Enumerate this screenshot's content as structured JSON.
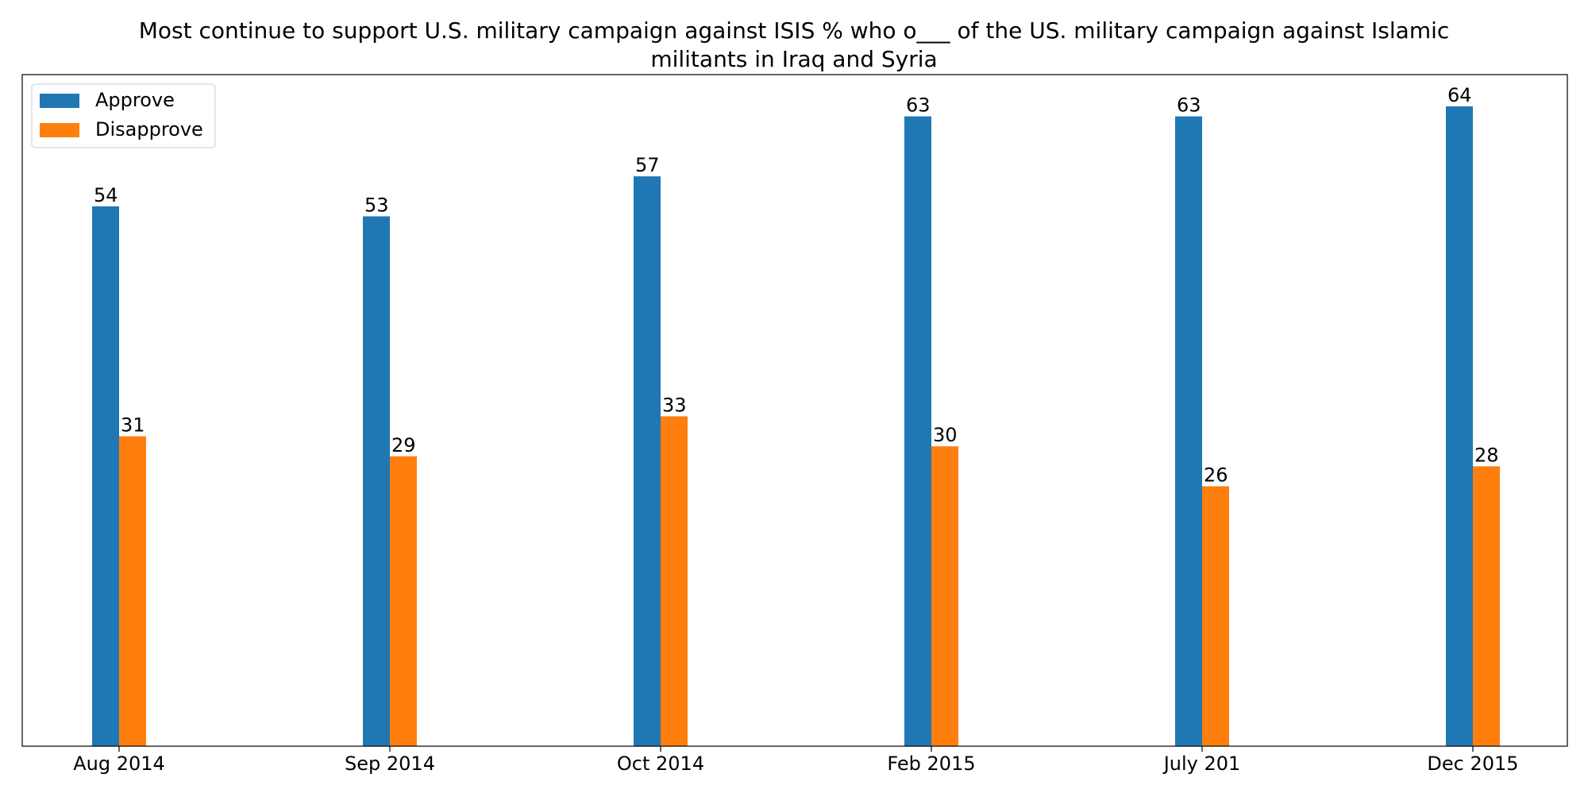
{
  "chart_data": {
    "type": "bar",
    "title_lines": [
      "Most continue to support U.S. military campaign against ISIS % who o___ of the US. military campaign against Islamic",
      "militants in Iraq and Syria"
    ],
    "xlabel": "",
    "ylabel": "",
    "categories": [
      "Aug 2014",
      "Sep 2014",
      "Oct 2014",
      "Feb 2015",
      "July 201",
      "Dec 2015"
    ],
    "series": [
      {
        "name": "Approve",
        "color": "#1f77b4",
        "values": [
          54,
          53,
          57,
          63,
          63,
          64
        ]
      },
      {
        "name": "Disapprove",
        "color": "#ff7f0e",
        "values": [
          31,
          29,
          33,
          30,
          26,
          28
        ]
      }
    ],
    "ylim": [
      0,
      64
    ],
    "y_axis_visible": false,
    "grid": false,
    "legend_position": "top-left",
    "data_labels": true
  }
}
